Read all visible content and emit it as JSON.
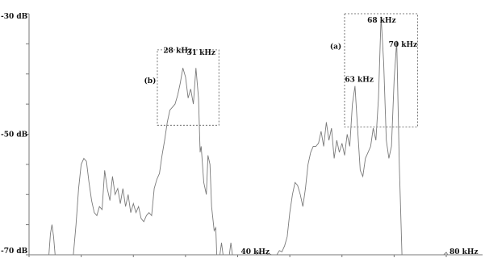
{
  "chart_data": {
    "type": "line",
    "title": "",
    "xlabel": "",
    "ylabel": "",
    "x_unit": "kHz",
    "y_unit": "dB",
    "xlim": [
      0,
      80
    ],
    "ylim": [
      -70,
      -30
    ],
    "y_tick_labels": [
      "-30 dB",
      "-50 dB",
      "-70 dB"
    ],
    "x_tick_labels": [
      {
        "x": 40,
        "text": "40 kHz"
      },
      {
        "x": 80,
        "text": "80 kHz"
      }
    ],
    "series": [
      {
        "color": "#7a7a7a",
        "points": [
          [
            3.8,
            -70
          ],
          [
            4.1,
            -66.5
          ],
          [
            4.4,
            -65
          ],
          [
            4.7,
            -67
          ],
          [
            5.0,
            -70
          ],
          [
            8.5,
            -70
          ],
          [
            9.0,
            -65
          ],
          [
            9.5,
            -59
          ],
          [
            10.0,
            -55
          ],
          [
            10.5,
            -54
          ],
          [
            11.0,
            -54.5
          ],
          [
            11.5,
            -58
          ],
          [
            12.0,
            -61
          ],
          [
            12.5,
            -63
          ],
          [
            13.0,
            -63.5
          ],
          [
            13.5,
            -62
          ],
          [
            14.0,
            -62.5
          ],
          [
            14.5,
            -56
          ],
          [
            15.0,
            -59
          ],
          [
            15.5,
            -61
          ],
          [
            16.0,
            -57
          ],
          [
            16.5,
            -60
          ],
          [
            17.0,
            -59
          ],
          [
            17.5,
            -61.5
          ],
          [
            18.0,
            -59
          ],
          [
            18.5,
            -62
          ],
          [
            19.0,
            -60
          ],
          [
            19.5,
            -63
          ],
          [
            20.0,
            -61.5
          ],
          [
            20.5,
            -63
          ],
          [
            21.0,
            -62
          ],
          [
            21.5,
            -64
          ],
          [
            22.0,
            -64.5
          ],
          [
            22.5,
            -63.5
          ],
          [
            23.0,
            -63
          ],
          [
            23.5,
            -63.5
          ],
          [
            24.0,
            -59
          ],
          [
            24.5,
            -57.5
          ],
          [
            25.0,
            -56.5
          ],
          [
            25.5,
            -53.5
          ],
          [
            26.0,
            -51
          ],
          [
            26.5,
            -48
          ],
          [
            27.0,
            -46
          ],
          [
            27.5,
            -45.5
          ],
          [
            28.0,
            -45
          ],
          [
            28.5,
            -43.5
          ],
          [
            29.0,
            -41.5
          ],
          [
            29.5,
            -39
          ],
          [
            30.0,
            -40.5
          ],
          [
            30.5,
            -44
          ],
          [
            31.0,
            -42.5
          ],
          [
            31.5,
            -45
          ],
          [
            32.0,
            -39
          ],
          [
            32.5,
            -44
          ],
          [
            32.8,
            -53
          ],
          [
            33.0,
            -52
          ],
          [
            33.5,
            -58
          ],
          [
            34.0,
            -60
          ],
          [
            34.3,
            -53.5
          ],
          [
            34.7,
            -55
          ],
          [
            35.0,
            -62
          ],
          [
            35.5,
            -66
          ],
          [
            35.8,
            -65.5
          ],
          [
            36.0,
            -70
          ],
          [
            36.6,
            -70
          ],
          [
            36.9,
            -68
          ],
          [
            37.2,
            -70
          ],
          [
            38.4,
            -70
          ],
          [
            38.7,
            -68
          ],
          [
            39.0,
            -70
          ],
          [
            43.5,
            -70
          ],
          [
            44.0,
            -69.5
          ],
          [
            44.5,
            -70
          ],
          [
            45.5,
            -70
          ],
          [
            46.0,
            -69.8
          ],
          [
            46.5,
            -70
          ],
          [
            47.5,
            -70
          ],
          [
            48.0,
            -69.3
          ],
          [
            48.5,
            -69.5
          ],
          [
            49.0,
            -68.5
          ],
          [
            49.5,
            -67
          ],
          [
            50.0,
            -63
          ],
          [
            50.5,
            -60
          ],
          [
            51.0,
            -58
          ],
          [
            51.5,
            -58.5
          ],
          [
            52.0,
            -60
          ],
          [
            52.5,
            -62
          ],
          [
            53.0,
            -59
          ],
          [
            53.5,
            -55
          ],
          [
            54.0,
            -53
          ],
          [
            54.5,
            -52
          ],
          [
            55.0,
            -52
          ],
          [
            55.5,
            -51.5
          ],
          [
            56.0,
            -49.5
          ],
          [
            56.5,
            -52
          ],
          [
            57.0,
            -48
          ],
          [
            57.5,
            -51
          ],
          [
            58.0,
            -49
          ],
          [
            58.5,
            -54
          ],
          [
            59.0,
            -51
          ],
          [
            59.5,
            -53
          ],
          [
            60.0,
            -51.5
          ],
          [
            60.5,
            -53.5
          ],
          [
            61.0,
            -50
          ],
          [
            61.5,
            -52
          ],
          [
            62.0,
            -45
          ],
          [
            62.5,
            -42
          ],
          [
            63.0,
            -49
          ],
          [
            63.5,
            -56
          ],
          [
            64.0,
            -57
          ],
          [
            64.5,
            -54
          ],
          [
            65.0,
            -53
          ],
          [
            65.5,
            -52
          ],
          [
            66.0,
            -49
          ],
          [
            66.5,
            -51
          ],
          [
            67.0,
            -44
          ],
          [
            67.5,
            -30.5
          ],
          [
            68.0,
            -38
          ],
          [
            68.5,
            -51
          ],
          [
            69.0,
            -54
          ],
          [
            69.5,
            -52
          ],
          [
            70.0,
            -41
          ],
          [
            70.5,
            -34.5
          ],
          [
            71.0,
            -55
          ],
          [
            71.5,
            -70
          ],
          [
            79.5,
            -70
          ],
          [
            80.0,
            -69.6
          ],
          [
            80.3,
            -70
          ]
        ]
      }
    ],
    "annotations": [
      {
        "text": "28 kHz",
        "x": 28.5,
        "y": -36.5
      },
      {
        "text": "31 kHz",
        "x": 33,
        "y": -36.8
      },
      {
        "text": "(b)",
        "x": 23.2,
        "y": -41.5
      },
      {
        "text": "63 kHz",
        "x": 63.3,
        "y": -41.3
      },
      {
        "text": "68 kHz",
        "x": 67.6,
        "y": -31.5
      },
      {
        "text": "70 kHz",
        "x": 71.7,
        "y": -35.5
      },
      {
        "text": "(a)",
        "x": 58.8,
        "y": -35.8
      }
    ],
    "highlight_boxes": [
      {
        "label": "(b)",
        "x_range": [
          24.6,
          36.4
        ],
        "y_range": [
          -48.5,
          -36
        ]
      },
      {
        "label": "(a)",
        "x_range": [
          60.5,
          74.5
        ],
        "y_range": [
          -48.8,
          -30
        ]
      }
    ],
    "grid": false,
    "legend": "none"
  }
}
